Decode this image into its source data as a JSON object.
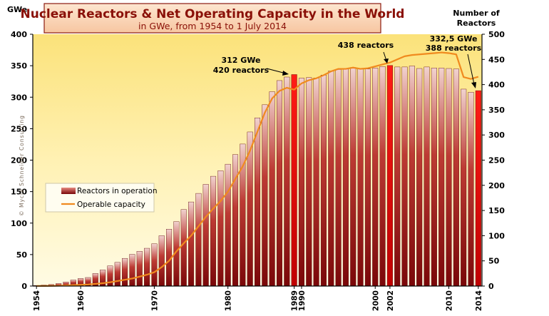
{
  "chart_data": {
    "type": "bar",
    "title": "Nuclear Reactors & Net Operating Capacity in the World",
    "subtitle": "in GWe, from 1954 to 1 July 2014",
    "left_axis_unit": "GWe",
    "right_axis_title_line1": "Number of",
    "right_axis_title_line2": "Reactors",
    "watermark": "© Mycle Schneider Consulting",
    "x": [
      1954,
      1955,
      1956,
      1957,
      1958,
      1959,
      1960,
      1961,
      1962,
      1963,
      1964,
      1965,
      1966,
      1967,
      1968,
      1969,
      1970,
      1971,
      1972,
      1973,
      1974,
      1975,
      1976,
      1977,
      1978,
      1979,
      1980,
      1981,
      1982,
      1983,
      1984,
      1985,
      1986,
      1987,
      1988,
      1989,
      1990,
      1991,
      1992,
      1993,
      1994,
      1995,
      1996,
      1997,
      1998,
      1999,
      2000,
      2001,
      2002,
      2003,
      2004,
      2005,
      2006,
      2007,
      2008,
      2009,
      2010,
      2011,
      2012,
      2013,
      2014
    ],
    "x_tick_labels": [
      "1954",
      "1960",
      "1970",
      "1980",
      "1989",
      "1990",
      "2000",
      "2002",
      "2010",
      "2014"
    ],
    "left_ylim": [
      0,
      400
    ],
    "left_ticks": [
      "0",
      "50",
      "100",
      "150",
      "200",
      "250",
      "300",
      "350",
      "400"
    ],
    "right_ylim": [
      0,
      500
    ],
    "right_ticks": [
      "0",
      "50",
      "100",
      "150",
      "200",
      "250",
      "300",
      "350",
      "400",
      "450",
      "500"
    ],
    "series": [
      {
        "name": "Reactors in operation",
        "axis": "right",
        "values": [
          1,
          2,
          3,
          5,
          8,
          12,
          15,
          17,
          25,
          32,
          40,
          47,
          55,
          63,
          69,
          75,
          84,
          100,
          113,
          128,
          152,
          167,
          184,
          202,
          218,
          229,
          242,
          261,
          282,
          306,
          334,
          360,
          386,
          408,
          415,
          420,
          413,
          414,
          413,
          419,
          427,
          430,
          432,
          434,
          432,
          431,
          433,
          436,
          438,
          435,
          435,
          437,
          432,
          435,
          433,
          433,
          432,
          431,
          391,
          385,
          388
        ],
        "highlight_years": [
          1989,
          2002,
          2014
        ]
      },
      {
        "name": "Operable capacity",
        "axis": "left",
        "color": "#f08a1e",
        "values": [
          0.1,
          0.1,
          0.3,
          0.5,
          1,
          1.5,
          2,
          2.5,
          3.5,
          4.5,
          6,
          8,
          10,
          12,
          15,
          18,
          22,
          30,
          40,
          55,
          68,
          80,
          95,
          110,
          123,
          135,
          150,
          170,
          190,
          215,
          245,
          275,
          298,
          310,
          315,
          312,
          322,
          327,
          330,
          335,
          341,
          345,
          345,
          347,
          345,
          346,
          349,
          352,
          355,
          360,
          365,
          367,
          368,
          369,
          370,
          371,
          370,
          368,
          332,
          329,
          332.5
        ]
      }
    ],
    "legend": [
      "Reactors in operation",
      "Operable capacity"
    ],
    "legend_position": "middle-left",
    "annotations": [
      {
        "line1": "312 GWe",
        "line2": "420 reactors"
      },
      {
        "line1": "438 reactors"
      },
      {
        "line1": "332,5 GWe",
        "line2": "388 reactors"
      }
    ]
  }
}
